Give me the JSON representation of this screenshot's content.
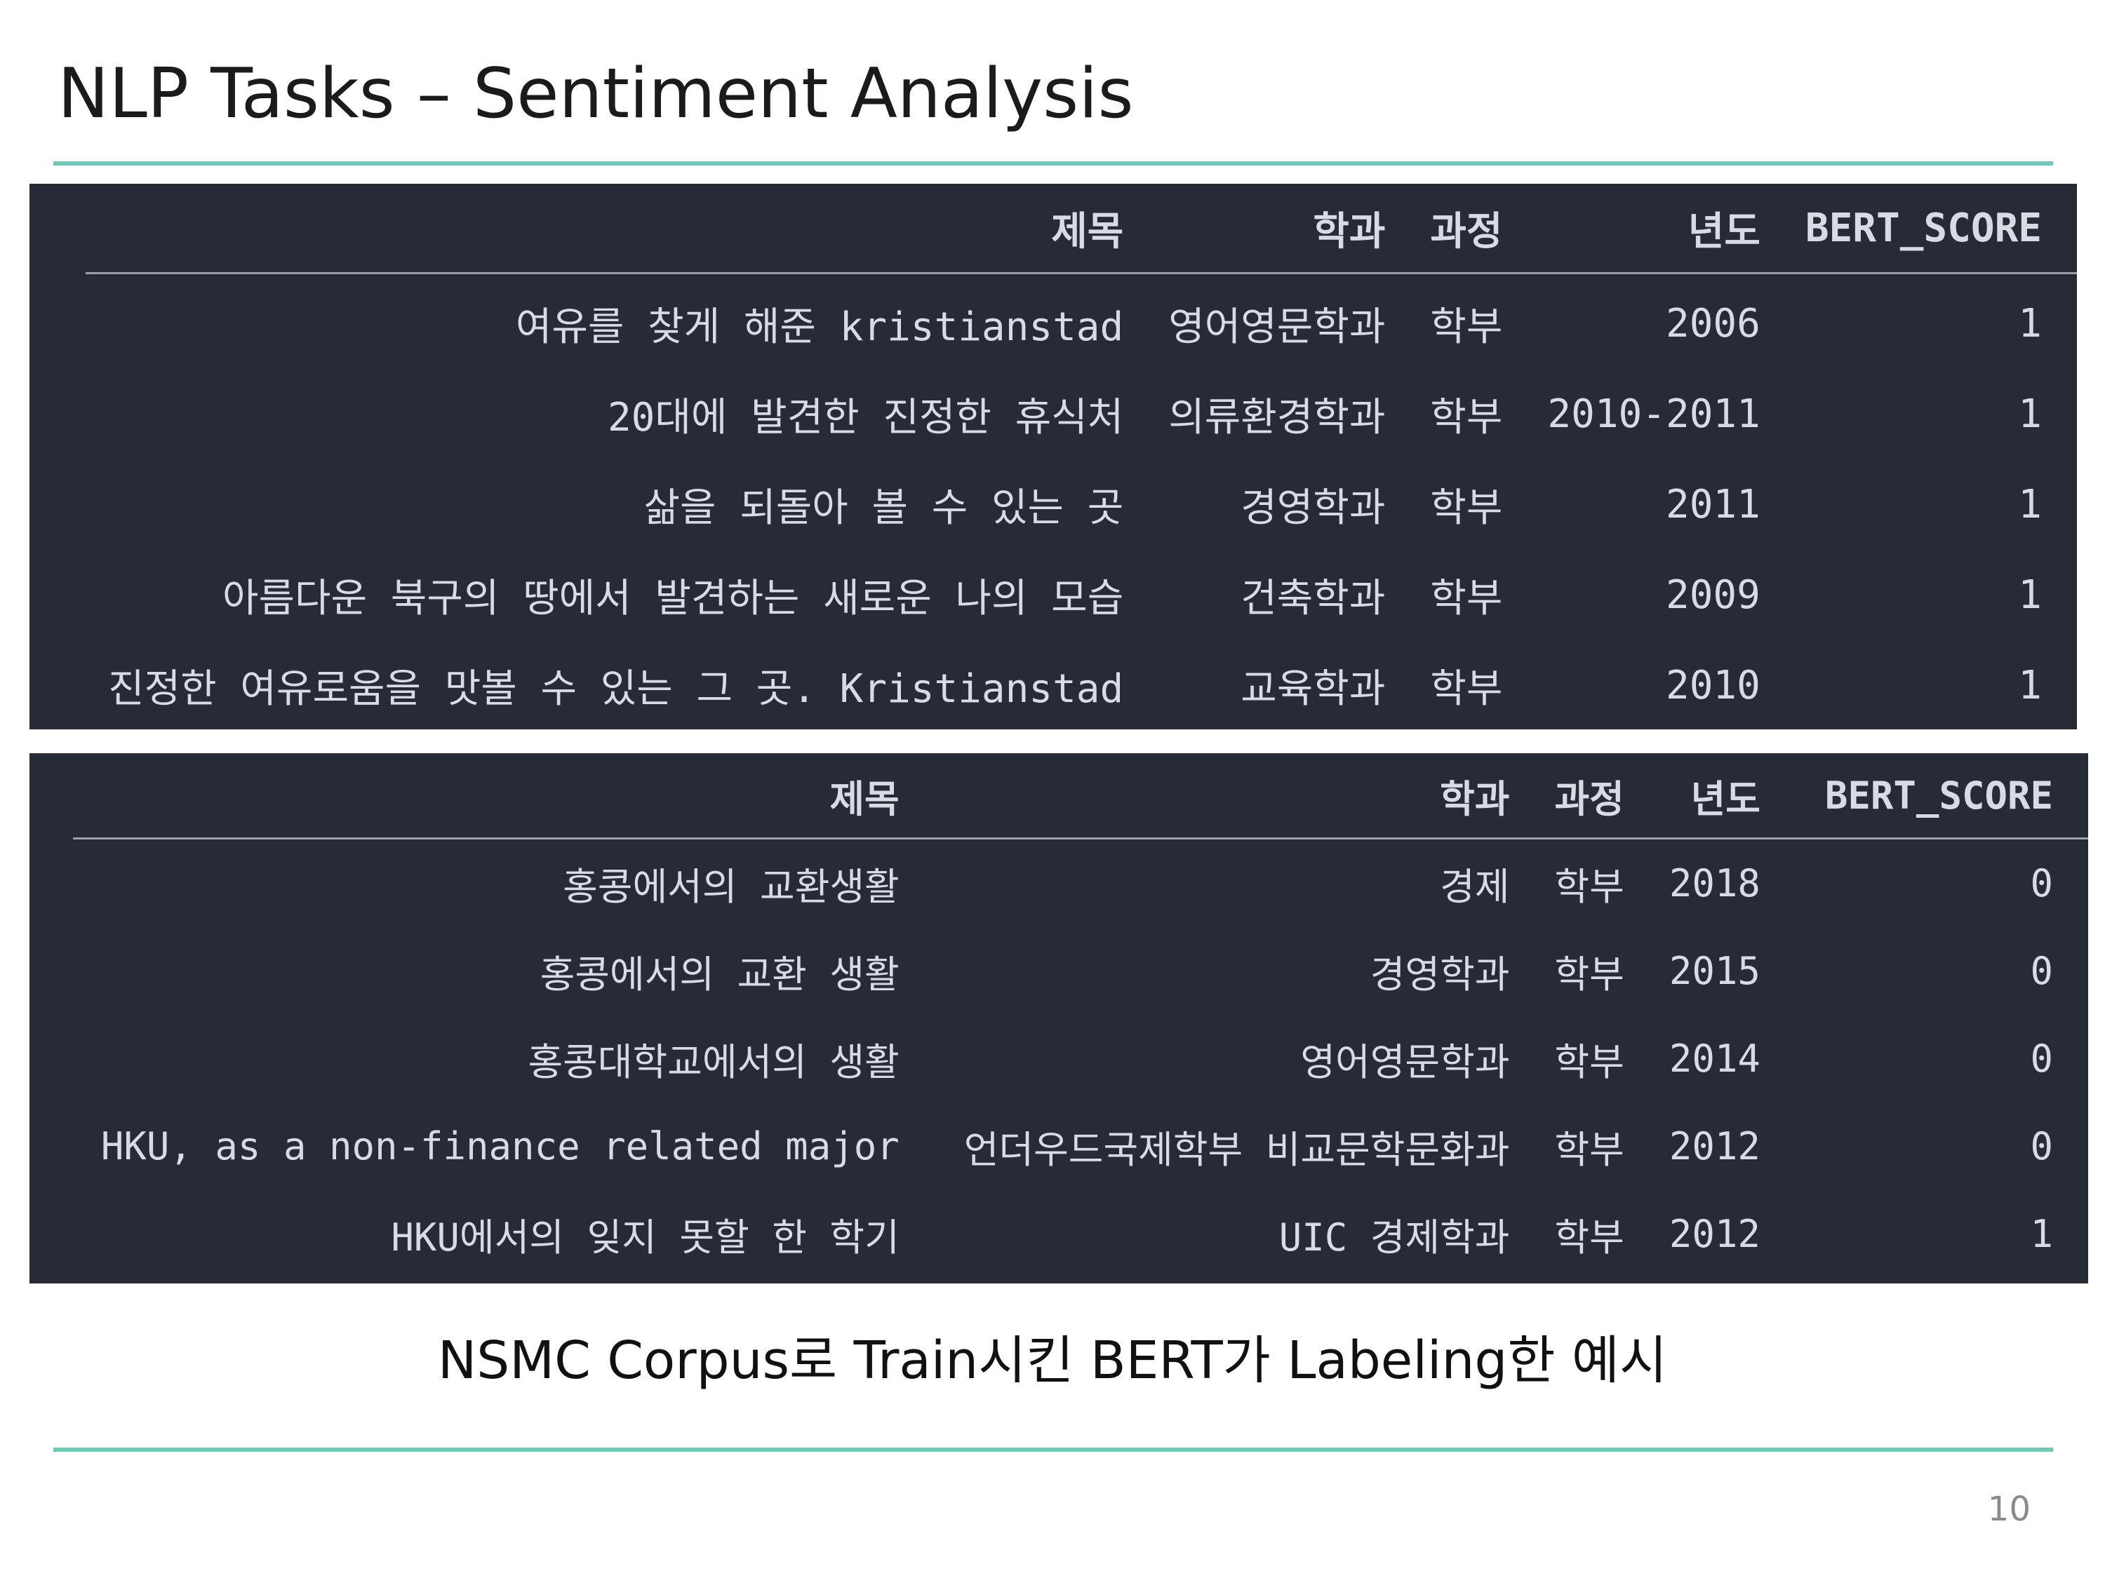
{
  "slide": {
    "title": "NLP Tasks – Sentiment Analysis",
    "caption": "NSMC Corpus로 Train시킨 BERT가 Labeling한 예시",
    "page_number": "10",
    "accent_color": "#6ccbb6",
    "table_background": "#272b36"
  },
  "table1": {
    "headers": [
      "제목",
      "학과",
      "과정",
      "년도",
      "BERT_SCORE"
    ],
    "rows": [
      [
        "여유를 찾게 해준 kristianstad",
        "영어영문학과",
        "학부",
        "2006",
        "1"
      ],
      [
        "20대에 발견한 진정한 휴식처",
        "의류환경학과",
        "학부",
        "2010-2011",
        "1"
      ],
      [
        "삶을 되돌아 볼 수 있는 곳",
        "경영학과",
        "학부",
        "2011",
        "1"
      ],
      [
        "아름다운 북구의 땅에서 발견하는 새로운 나의 모습",
        "건축학과",
        "학부",
        "2009",
        "1"
      ],
      [
        "진정한 여유로움을 맛볼 수 있는 그 곳. Kristianstad",
        "교육학과",
        "학부",
        "2010",
        "1"
      ]
    ]
  },
  "table2": {
    "headers": [
      "제목",
      "학과",
      "과정",
      "년도",
      "BERT_SCORE"
    ],
    "rows": [
      [
        "홍콩에서의 교환생활",
        "경제",
        "학부",
        "2018",
        "0"
      ],
      [
        "홍콩에서의 교환 생활",
        "경영학과",
        "학부",
        "2015",
        "0"
      ],
      [
        "홍콩대학교에서의 생활",
        "영어영문학과",
        "학부",
        "2014",
        "0"
      ],
      [
        "HKU, as a non-finance related major",
        "언더우드국제학부 비교문학문화과",
        "학부",
        "2012",
        "0"
      ],
      [
        "HKU에서의 잊지 못할 한 학기",
        "UIC 경제학과",
        "학부",
        "2012",
        "1"
      ]
    ]
  }
}
